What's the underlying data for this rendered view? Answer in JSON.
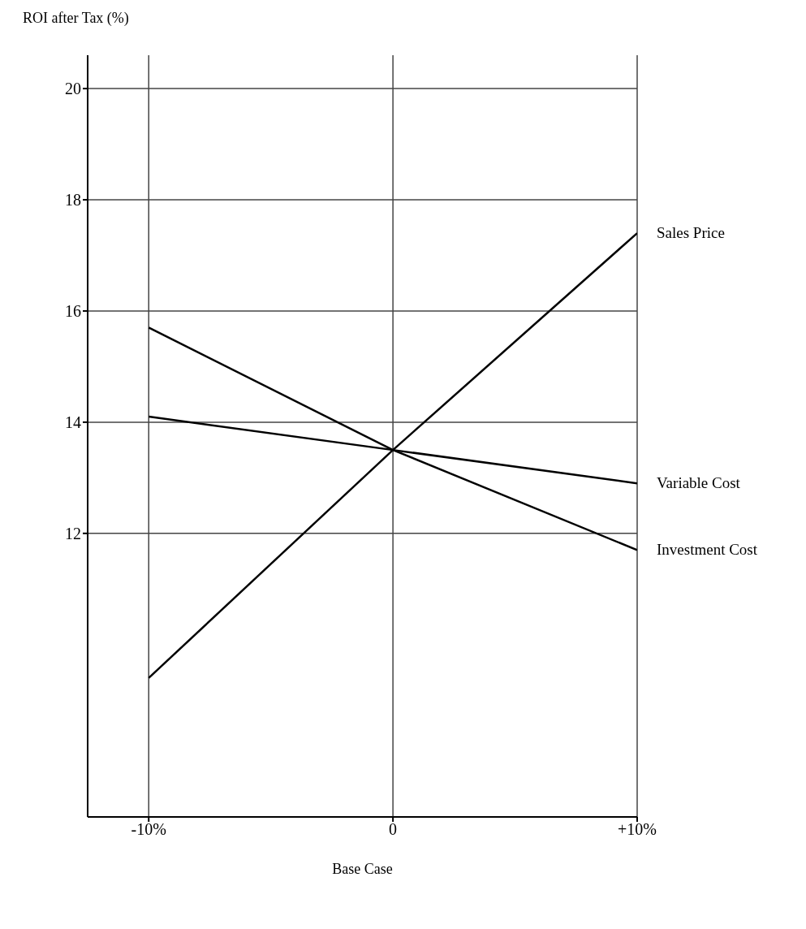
{
  "chart_data": {
    "type": "line",
    "ylabel": "ROI after Tax (%)",
    "xlabel": "Base Case",
    "xlim": [
      -12.5,
      10
    ],
    "xticks": [
      {
        "value": -10,
        "label": "-10%"
      },
      0,
      {
        "value": 10,
        "label": "+10%"
      }
    ],
    "ylim": [
      6.9,
      20.6
    ],
    "yticks": [
      12,
      14,
      16,
      18,
      20
    ],
    "grid": true,
    "legend": false,
    "marker": "none",
    "line_style": "solid",
    "series": [
      {
        "name": "Sales Price",
        "color": "#000000",
        "x": [
          -10,
          0,
          10
        ],
        "values": [
          9.4,
          13.5,
          17.4
        ]
      },
      {
        "name": "Variable Cost",
        "color": "#000000",
        "x": [
          -10,
          0,
          10
        ],
        "values": [
          14.1,
          13.5,
          12.9
        ]
      },
      {
        "name": "Investment Cost",
        "color": "#000000",
        "x": [
          -10,
          0,
          10
        ],
        "values": [
          15.7,
          13.5,
          11.7
        ]
      }
    ]
  }
}
